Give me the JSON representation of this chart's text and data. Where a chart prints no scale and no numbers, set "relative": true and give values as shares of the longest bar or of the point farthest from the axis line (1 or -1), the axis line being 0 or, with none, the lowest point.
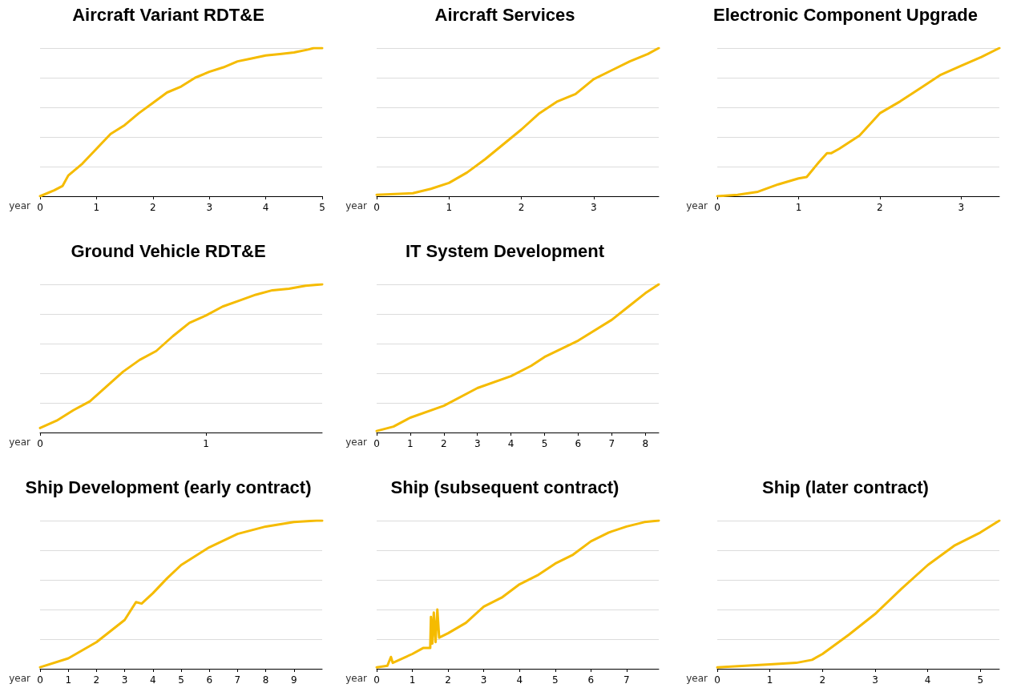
{
  "chart_data": [
    {
      "type": "line",
      "title": "Aircraft Variant RDT&E",
      "xlabel": "year",
      "relative": true,
      "grid": "y",
      "marker": "none",
      "xlim": [
        0,
        5
      ],
      "xticks": [
        0,
        1,
        2,
        3,
        4,
        5
      ],
      "series": [
        {
          "color": "#f5bb00",
          "x": [
            0,
            0.25,
            0.4,
            0.5,
            0.75,
            1,
            1.25,
            1.5,
            1.75,
            2,
            2.25,
            2.5,
            2.75,
            3,
            3.25,
            3.5,
            3.75,
            4,
            4.25,
            4.5,
            4.75,
            4.85,
            5
          ],
          "values": [
            0,
            0.04,
            0.07,
            0.14,
            0.22,
            0.32,
            0.42,
            0.48,
            0.56,
            0.63,
            0.7,
            0.74,
            0.8,
            0.84,
            0.87,
            0.91,
            0.93,
            0.95,
            0.96,
            0.97,
            0.99,
            1,
            1
          ]
        }
      ]
    },
    {
      "type": "line",
      "title": "Aircraft Services",
      "xlabel": "year",
      "relative": true,
      "grid": "y",
      "marker": "none",
      "xlim": [
        0,
        3.9
      ],
      "xticks": [
        0,
        1,
        2,
        3
      ],
      "series": [
        {
          "color": "#f5bb00",
          "x": [
            0,
            0.5,
            0.75,
            1,
            1.25,
            1.5,
            1.75,
            2,
            2.25,
            2.5,
            2.75,
            3,
            3.25,
            3.5,
            3.75,
            3.9
          ],
          "values": [
            0.01,
            0.02,
            0.05,
            0.09,
            0.16,
            0.25,
            0.35,
            0.45,
            0.56,
            0.64,
            0.69,
            0.79,
            0.85,
            0.91,
            0.96,
            1
          ]
        }
      ]
    },
    {
      "type": "line",
      "title": "Electronic Component Upgrade",
      "xlabel": "year",
      "relative": true,
      "grid": "y",
      "marker": "none",
      "xlim": [
        0,
        3.47
      ],
      "xticks": [
        0,
        1,
        2,
        3
      ],
      "series": [
        {
          "color": "#f5bb00",
          "x": [
            0,
            0.25,
            0.5,
            0.75,
            1,
            1.1,
            1.25,
            1.35,
            1.4,
            1.5,
            1.75,
            2,
            2.25,
            2.5,
            2.75,
            3,
            3.25,
            3.47
          ],
          "values": [
            0,
            0.01,
            0.03,
            0.08,
            0.12,
            0.13,
            0.23,
            0.29,
            0.29,
            0.32,
            0.41,
            0.56,
            0.64,
            0.73,
            0.82,
            0.88,
            0.94,
            1
          ]
        }
      ]
    },
    {
      "type": "line",
      "title": "Ground Vehicle RDT&E",
      "xlabel": "year",
      "relative": true,
      "grid": "y",
      "marker": "none",
      "xlim": [
        0,
        1.7
      ],
      "xticks": [
        0,
        1
      ],
      "series": [
        {
          "color": "#f5bb00",
          "x": [
            0,
            0.1,
            0.2,
            0.3,
            0.4,
            0.5,
            0.6,
            0.7,
            0.8,
            0.9,
            1,
            1.1,
            1.2,
            1.3,
            1.4,
            1.5,
            1.6,
            1.7
          ],
          "values": [
            0.03,
            0.08,
            0.15,
            0.21,
            0.31,
            0.41,
            0.49,
            0.55,
            0.65,
            0.74,
            0.79,
            0.85,
            0.89,
            0.93,
            0.96,
            0.97,
            0.99,
            1
          ]
        }
      ]
    },
    {
      "type": "line",
      "title": "IT System Development",
      "xlabel": "year",
      "relative": true,
      "grid": "y",
      "marker": "none",
      "xlim": [
        0,
        8.4
      ],
      "xticks": [
        0,
        1,
        2,
        3,
        4,
        5,
        6,
        7,
        8
      ],
      "series": [
        {
          "color": "#f5bb00",
          "x": [
            0,
            0.5,
            1,
            2,
            3,
            4,
            4.6,
            5,
            6,
            7,
            7.5,
            8,
            8.4
          ],
          "values": [
            0.01,
            0.04,
            0.1,
            0.18,
            0.3,
            0.38,
            0.45,
            0.51,
            0.62,
            0.76,
            0.85,
            0.94,
            1
          ]
        }
      ]
    },
    {
      "type": "line",
      "title": "Ship Development (early contract)",
      "xlabel": "year",
      "relative": true,
      "grid": "y",
      "marker": "none",
      "xlim": [
        0,
        10
      ],
      "xticks": [
        0,
        1,
        2,
        3,
        4,
        5,
        6,
        7,
        8,
        9
      ],
      "series": [
        {
          "color": "#f5bb00",
          "x": [
            0,
            1,
            2,
            3,
            3.4,
            3.6,
            4,
            4.5,
            5,
            6,
            7,
            8,
            9,
            9.8,
            10
          ],
          "values": [
            0.01,
            0.07,
            0.18,
            0.33,
            0.45,
            0.44,
            0.51,
            0.61,
            0.7,
            0.82,
            0.91,
            0.96,
            0.99,
            1,
            1
          ]
        }
      ]
    },
    {
      "type": "line",
      "title": "Ship (subsequent contract)",
      "xlabel": "year",
      "relative": true,
      "grid": "y",
      "marker": "none",
      "xlim": [
        0,
        7.9
      ],
      "xticks": [
        0,
        1,
        2,
        3,
        4,
        5,
        6,
        7
      ],
      "series": [
        {
          "color": "#f5bb00",
          "x": [
            0,
            0.3,
            0.4,
            0.45,
            1,
            1.3,
            1.5,
            1.52,
            1.56,
            1.6,
            1.65,
            1.7,
            1.75,
            2,
            2.5,
            3,
            3.5,
            4,
            4.5,
            5,
            5.5,
            6,
            6.5,
            7,
            7.5,
            7.9
          ],
          "values": [
            0.01,
            0.02,
            0.08,
            0.04,
            0.1,
            0.14,
            0.14,
            0.35,
            0.17,
            0.38,
            0.18,
            0.4,
            0.21,
            0.24,
            0.31,
            0.42,
            0.48,
            0.57,
            0.63,
            0.71,
            0.77,
            0.86,
            0.92,
            0.96,
            0.99,
            1
          ]
        }
      ]
    },
    {
      "type": "line",
      "title": "Ship (later contract)",
      "xlabel": "year",
      "relative": true,
      "grid": "y",
      "marker": "none",
      "xlim": [
        0,
        5.36
      ],
      "xticks": [
        0,
        1,
        2,
        3,
        4,
        5
      ],
      "series": [
        {
          "color": "#f5bb00",
          "x": [
            0,
            1,
            1.5,
            1.8,
            2,
            2.5,
            3,
            3.5,
            4,
            4.5,
            5,
            5.36
          ],
          "values": [
            0.01,
            0.03,
            0.04,
            0.06,
            0.1,
            0.23,
            0.37,
            0.54,
            0.7,
            0.83,
            0.92,
            1
          ]
        }
      ]
    }
  ]
}
